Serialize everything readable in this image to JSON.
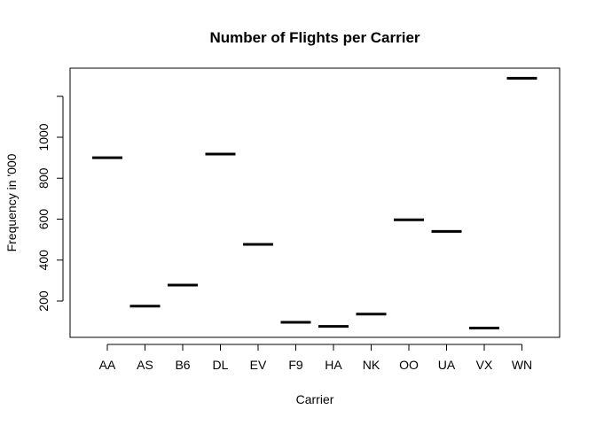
{
  "chart_data": {
    "type": "bar",
    "title": "Number of Flights per Carrier",
    "xlabel": "Carrier",
    "ylabel": "Frequency in '000",
    "categories": [
      "AA",
      "AS",
      "B6",
      "DL",
      "EV",
      "F9",
      "HA",
      "NK",
      "OO",
      "UA",
      "VX",
      "WN"
    ],
    "values": [
      900,
      175,
      278,
      918,
      477,
      96,
      76,
      136,
      597,
      540,
      68,
      1288
    ],
    "yticks": [
      200,
      400,
      600,
      800,
      1000
    ],
    "ylim": [
      0,
      1330
    ],
    "grid": false,
    "colors": {
      "line": "#000000",
      "axis": "#000000"
    }
  }
}
